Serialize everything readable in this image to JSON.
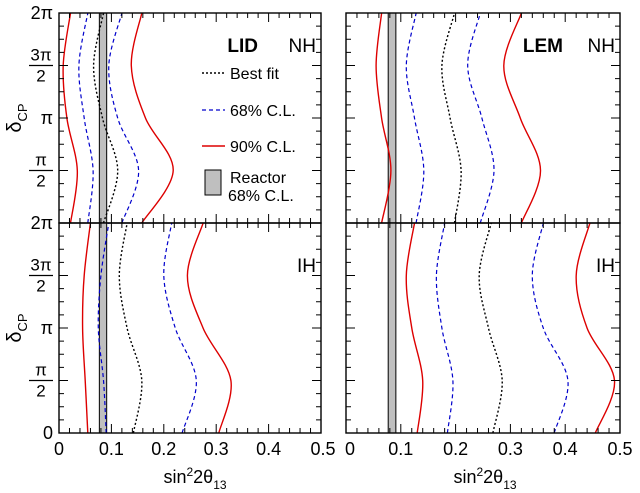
{
  "chart_data": {
    "type": "line",
    "layout": "2x2 panel grid",
    "xlabel": "sin²2θ13",
    "ylabel": "δCP",
    "xlim": [
      0,
      0.5
    ],
    "ylim": [
      0,
      6.2832
    ],
    "x_ticks": [
      {
        "value": 0,
        "label": "0"
      },
      {
        "value": 0.1,
        "label": "0.1"
      },
      {
        "value": 0.2,
        "label": "0.2"
      },
      {
        "value": 0.3,
        "label": "0.3"
      },
      {
        "value": 0.4,
        "label": "0.4"
      },
      {
        "value": 0.5,
        "label": "0.5"
      }
    ],
    "y_ticks": [
      {
        "value": 0,
        "label": "0"
      },
      {
        "value": 1.5708,
        "label": "π/2"
      },
      {
        "value": 3.1416,
        "label": "π"
      },
      {
        "value": 4.7124,
        "label": "3π/2"
      },
      {
        "value": 6.2832,
        "label": "2π"
      }
    ],
    "legend": {
      "placement": "top-left panel, right side",
      "entries": [
        {
          "label": "Best fit",
          "style": "dotted",
          "color": "#000000"
        },
        {
          "label": "68% C.L.",
          "style": "dashed",
          "color": "#0000cc"
        },
        {
          "label": "90% C.L.",
          "style": "solid",
          "color": "#dd0000"
        },
        {
          "label": "Reactor\n68% C.L.",
          "style": "band",
          "color": "#bfbfbf"
        }
      ]
    },
    "reactor_band": {
      "x_min": 0.077,
      "x_max": 0.091
    },
    "panels": [
      {
        "detector": "LID",
        "hierarchy": "NH",
        "series": [
          {
            "cl": "90_left",
            "points": [
              [
                0.022,
                0
              ],
              [
                0.035,
                1.57
              ],
              [
                0.015,
                3.14
              ],
              [
                0.008,
                4.71
              ],
              [
                0.022,
                6.28
              ]
            ]
          },
          {
            "cl": "68_left",
            "points": [
              [
                0.055,
                0
              ],
              [
                0.065,
                1.57
              ],
              [
                0.048,
                3.14
              ],
              [
                0.038,
                4.71
              ],
              [
                0.055,
                6.28
              ]
            ]
          },
          {
            "cl": "best",
            "points": [
              [
                0.085,
                0
              ],
              [
                0.112,
                1.57
              ],
              [
                0.083,
                3.14
              ],
              [
                0.066,
                4.71
              ],
              [
                0.085,
                6.28
              ]
            ]
          },
          {
            "cl": "68_right",
            "points": [
              [
                0.12,
                0
              ],
              [
                0.152,
                1.57
              ],
              [
                0.112,
                3.14
              ],
              [
                0.095,
                4.71
              ],
              [
                0.12,
                6.28
              ]
            ]
          },
          {
            "cl": "90_right",
            "points": [
              [
                0.158,
                0
              ],
              [
                0.218,
                1.57
              ],
              [
                0.165,
                3.14
              ],
              [
                0.138,
                4.71
              ],
              [
                0.158,
                6.28
              ]
            ]
          }
        ]
      },
      {
        "detector": "LEM",
        "hierarchy": "NH",
        "series": [
          {
            "cl": "90_left",
            "points": [
              [
                0.065,
                0
              ],
              [
                0.082,
                1.57
              ],
              [
                0.065,
                3.14
              ],
              [
                0.055,
                4.71
              ],
              [
                0.065,
                6.28
              ]
            ]
          },
          {
            "cl": "68_left",
            "points": [
              [
                0.128,
                0
              ],
              [
                0.142,
                1.57
              ],
              [
                0.125,
                3.14
              ],
              [
                0.11,
                4.71
              ],
              [
                0.128,
                6.28
              ]
            ]
          },
          {
            "cl": "best",
            "points": [
              [
                0.198,
                0
              ],
              [
                0.21,
                1.57
              ],
              [
                0.19,
                3.14
              ],
              [
                0.175,
                4.71
              ],
              [
                0.198,
                6.28
              ]
            ]
          },
          {
            "cl": "68_right",
            "points": [
              [
                0.245,
                0
              ],
              [
                0.27,
                1.57
              ],
              [
                0.248,
                3.14
              ],
              [
                0.222,
                4.71
              ],
              [
                0.245,
                6.28
              ]
            ]
          },
          {
            "cl": "90_right",
            "points": [
              [
                0.32,
                0
              ],
              [
                0.355,
                1.57
              ],
              [
                0.318,
                3.14
              ],
              [
                0.288,
                4.71
              ],
              [
                0.32,
                6.28
              ]
            ]
          }
        ]
      },
      {
        "detector": "LID",
        "hierarchy": "IH",
        "series": [
          {
            "cl": "90_left",
            "points": [
              [
                0.055,
                0
              ],
              [
                0.05,
                1.57
              ],
              [
                0.045,
                3.14
              ],
              [
                0.048,
                4.71
              ],
              [
                0.06,
                6.28
              ]
            ]
          },
          {
            "cl": "68_left",
            "points": [
              [
                0.09,
                0
              ],
              [
                0.085,
                1.57
              ],
              [
                0.075,
                3.14
              ],
              [
                0.08,
                4.71
              ],
              [
                0.095,
                6.28
              ]
            ]
          },
          {
            "cl": "best",
            "points": [
              [
                0.142,
                0
              ],
              [
                0.158,
                1.57
              ],
              [
                0.13,
                3.14
              ],
              [
                0.115,
                4.71
              ],
              [
                0.13,
                6.28
              ]
            ]
          },
          {
            "cl": "68_right",
            "points": [
              [
                0.235,
                0
              ],
              [
                0.262,
                1.57
              ],
              [
                0.222,
                3.14
              ],
              [
                0.2,
                4.71
              ],
              [
                0.215,
                6.28
              ]
            ]
          },
          {
            "cl": "90_right",
            "points": [
              [
                0.305,
                0
              ],
              [
                0.328,
                1.57
              ],
              [
                0.275,
                3.14
              ],
              [
                0.245,
                4.71
              ],
              [
                0.275,
                6.28
              ]
            ]
          }
        ]
      },
      {
        "detector": "LEM",
        "hierarchy": "IH",
        "series": [
          {
            "cl": "90_left",
            "points": [
              [
                0.13,
                0
              ],
              [
                0.14,
                1.57
              ],
              [
                0.12,
                3.14
              ],
              [
                0.11,
                4.71
              ],
              [
                0.125,
                6.28
              ]
            ]
          },
          {
            "cl": "68_left",
            "points": [
              [
                0.185,
                0
              ],
              [
                0.195,
                1.57
              ],
              [
                0.175,
                3.14
              ],
              [
                0.165,
                4.71
              ],
              [
                0.18,
                6.28
              ]
            ]
          },
          {
            "cl": "best",
            "points": [
              [
                0.268,
                0
              ],
              [
                0.285,
                1.57
              ],
              [
                0.26,
                3.14
              ],
              [
                0.243,
                4.71
              ],
              [
                0.265,
                6.28
              ]
            ]
          },
          {
            "cl": "68_right",
            "points": [
              [
                0.38,
                0
              ],
              [
                0.405,
                1.57
              ],
              [
                0.36,
                3.14
              ],
              [
                0.34,
                4.71
              ],
              [
                0.36,
                6.28
              ]
            ]
          },
          {
            "cl": "90_right",
            "points": [
              [
                0.455,
                0
              ],
              [
                0.49,
                1.57
              ],
              [
                0.44,
                3.14
              ],
              [
                0.42,
                4.71
              ],
              [
                0.445,
                6.28
              ]
            ]
          }
        ]
      }
    ]
  }
}
